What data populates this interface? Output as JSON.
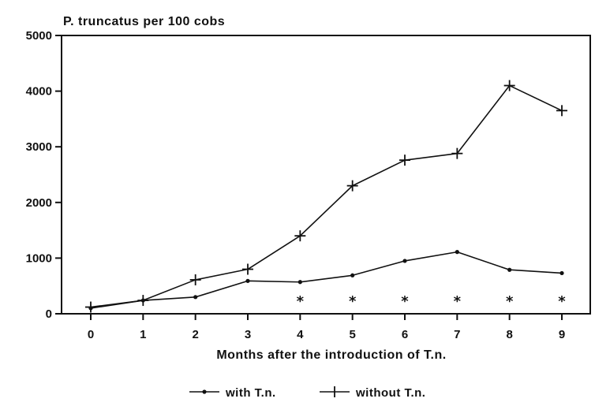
{
  "chart_data": {
    "type": "line",
    "ylabel": "P. truncatus per 100 cobs",
    "xlabel": "Months after the introduction of T.n.",
    "x": [
      0,
      1,
      2,
      3,
      4,
      5,
      6,
      7,
      8,
      9
    ],
    "ylim": [
      0,
      5000
    ],
    "yticks": [
      0,
      1000,
      2000,
      3000,
      4000,
      5000
    ],
    "yticklabels": [
      "0",
      "1000",
      "2000",
      "3000",
      "4000",
      "5000"
    ],
    "xticklabels": [
      "0",
      "1",
      "2",
      "3",
      "4",
      "5",
      "6",
      "7",
      "8",
      "9"
    ],
    "grid": false,
    "legend_position": "bottom",
    "series": [
      {
        "name": "with T.n.",
        "marker": "dot",
        "values": [
          100,
          240,
          300,
          590,
          570,
          690,
          950,
          1110,
          790,
          730
        ]
      },
      {
        "name": "without T.n.",
        "marker": "plus",
        "values": [
          120,
          240,
          610,
          800,
          1400,
          2300,
          2760,
          2880,
          4100,
          3650
        ]
      }
    ],
    "annotations": {
      "symbol": "*",
      "x": [
        4,
        5,
        6,
        7,
        8,
        9
      ],
      "y": 230
    }
  }
}
